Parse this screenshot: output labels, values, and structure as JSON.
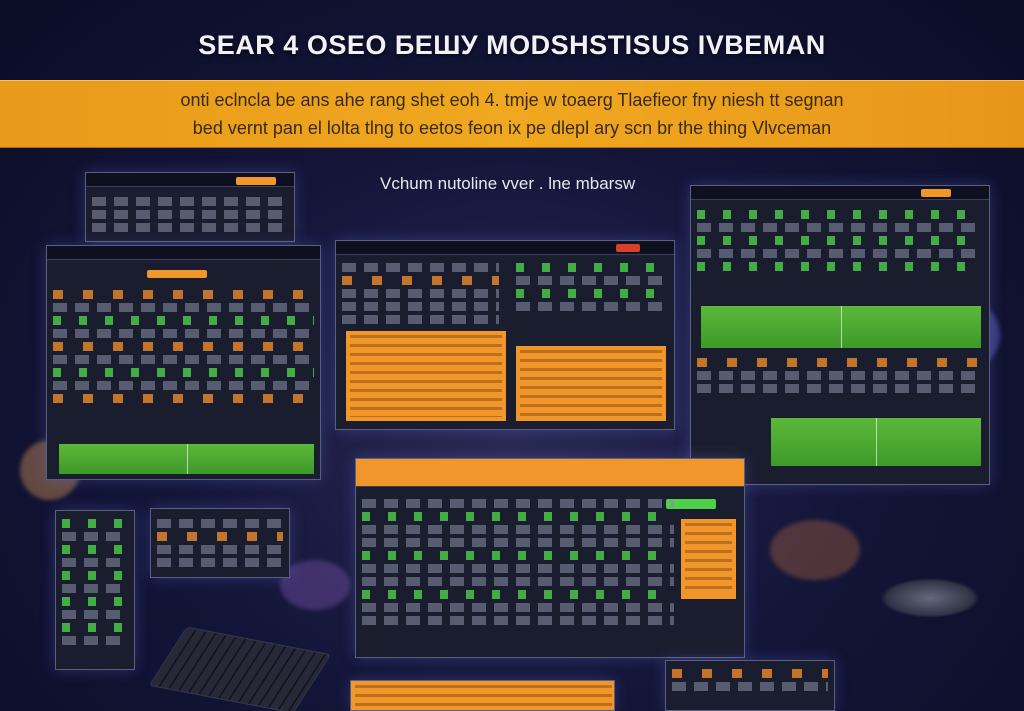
{
  "headline": "SEAR 4 OSEO БЕШУ MODSHSTISUS IVBEMAN",
  "banner": {
    "line1": "onti eclncla  be ans ahe rang shet eoh 4. tmje w toaerg  Tlaefieor fny niesh  tt segnan",
    "line2": "bed  vernt  pan el  lolta tlng  to eetos  feon ix  pe  dlepl  ary  scn  br the  thing  Vlvceman"
  },
  "subhead": "Vchum nutoline vver . lne mbarsw",
  "colors": {
    "accent_orange": "#f0962a",
    "accent_green": "#4fd04a",
    "panel_bg": "#1a1d2e"
  }
}
